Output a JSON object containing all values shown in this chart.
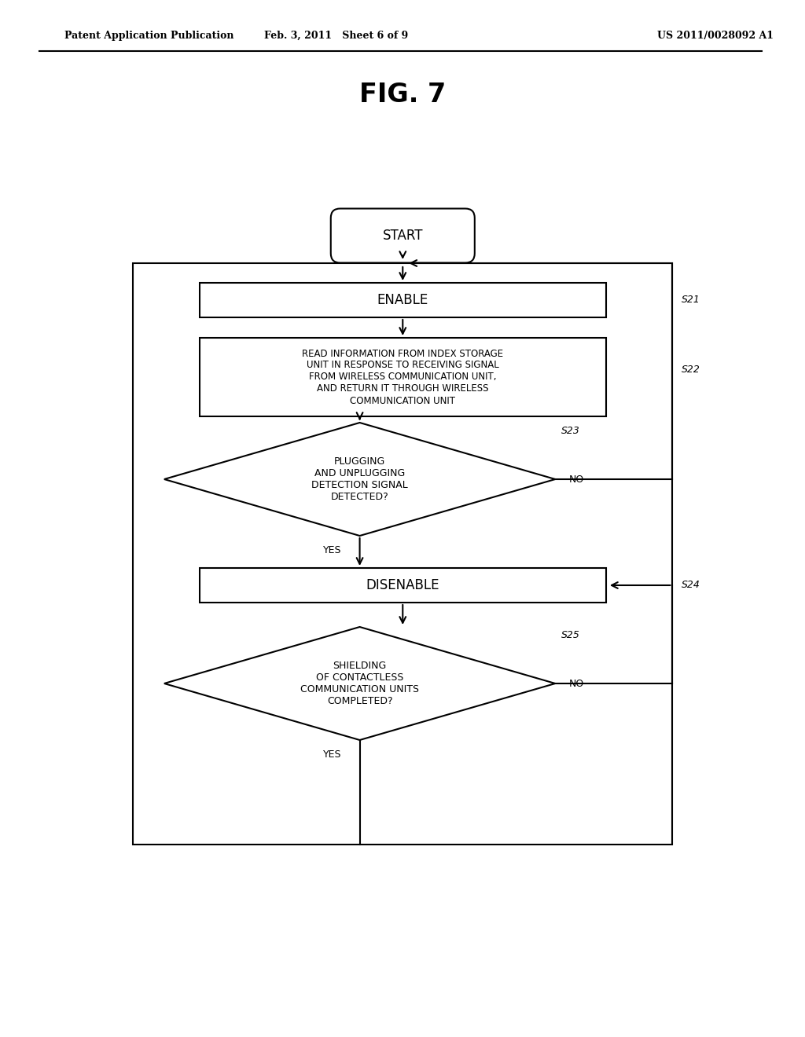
{
  "bg_color": "#ffffff",
  "title": "FIG. 7",
  "header_left": "Patent Application Publication",
  "header_mid": "Feb. 3, 2011   Sheet 6 of 9",
  "header_right": "US 2011/0028092 A1",
  "s22_text": "READ INFORMATION FROM INDEX STORAGE\nUNIT IN RESPONSE TO RECEIVING SIGNAL\nFROM WIRELESS COMMUNICATION UNIT,\nAND RETURN IT THROUGH WIRELESS\nCOMMUNICATION UNIT",
  "s23_text": "PLUGGING\nAND UNPLUGGING\nDETECTION SIGNAL\nDETECTED?",
  "s25_text": "SHIELDING\nOF CONTACTLESS\nCOMMUNICATION UNITS\nCOMPLETED?",
  "text_color": "#000000",
  "line_color": "#000000",
  "lw": 1.5
}
